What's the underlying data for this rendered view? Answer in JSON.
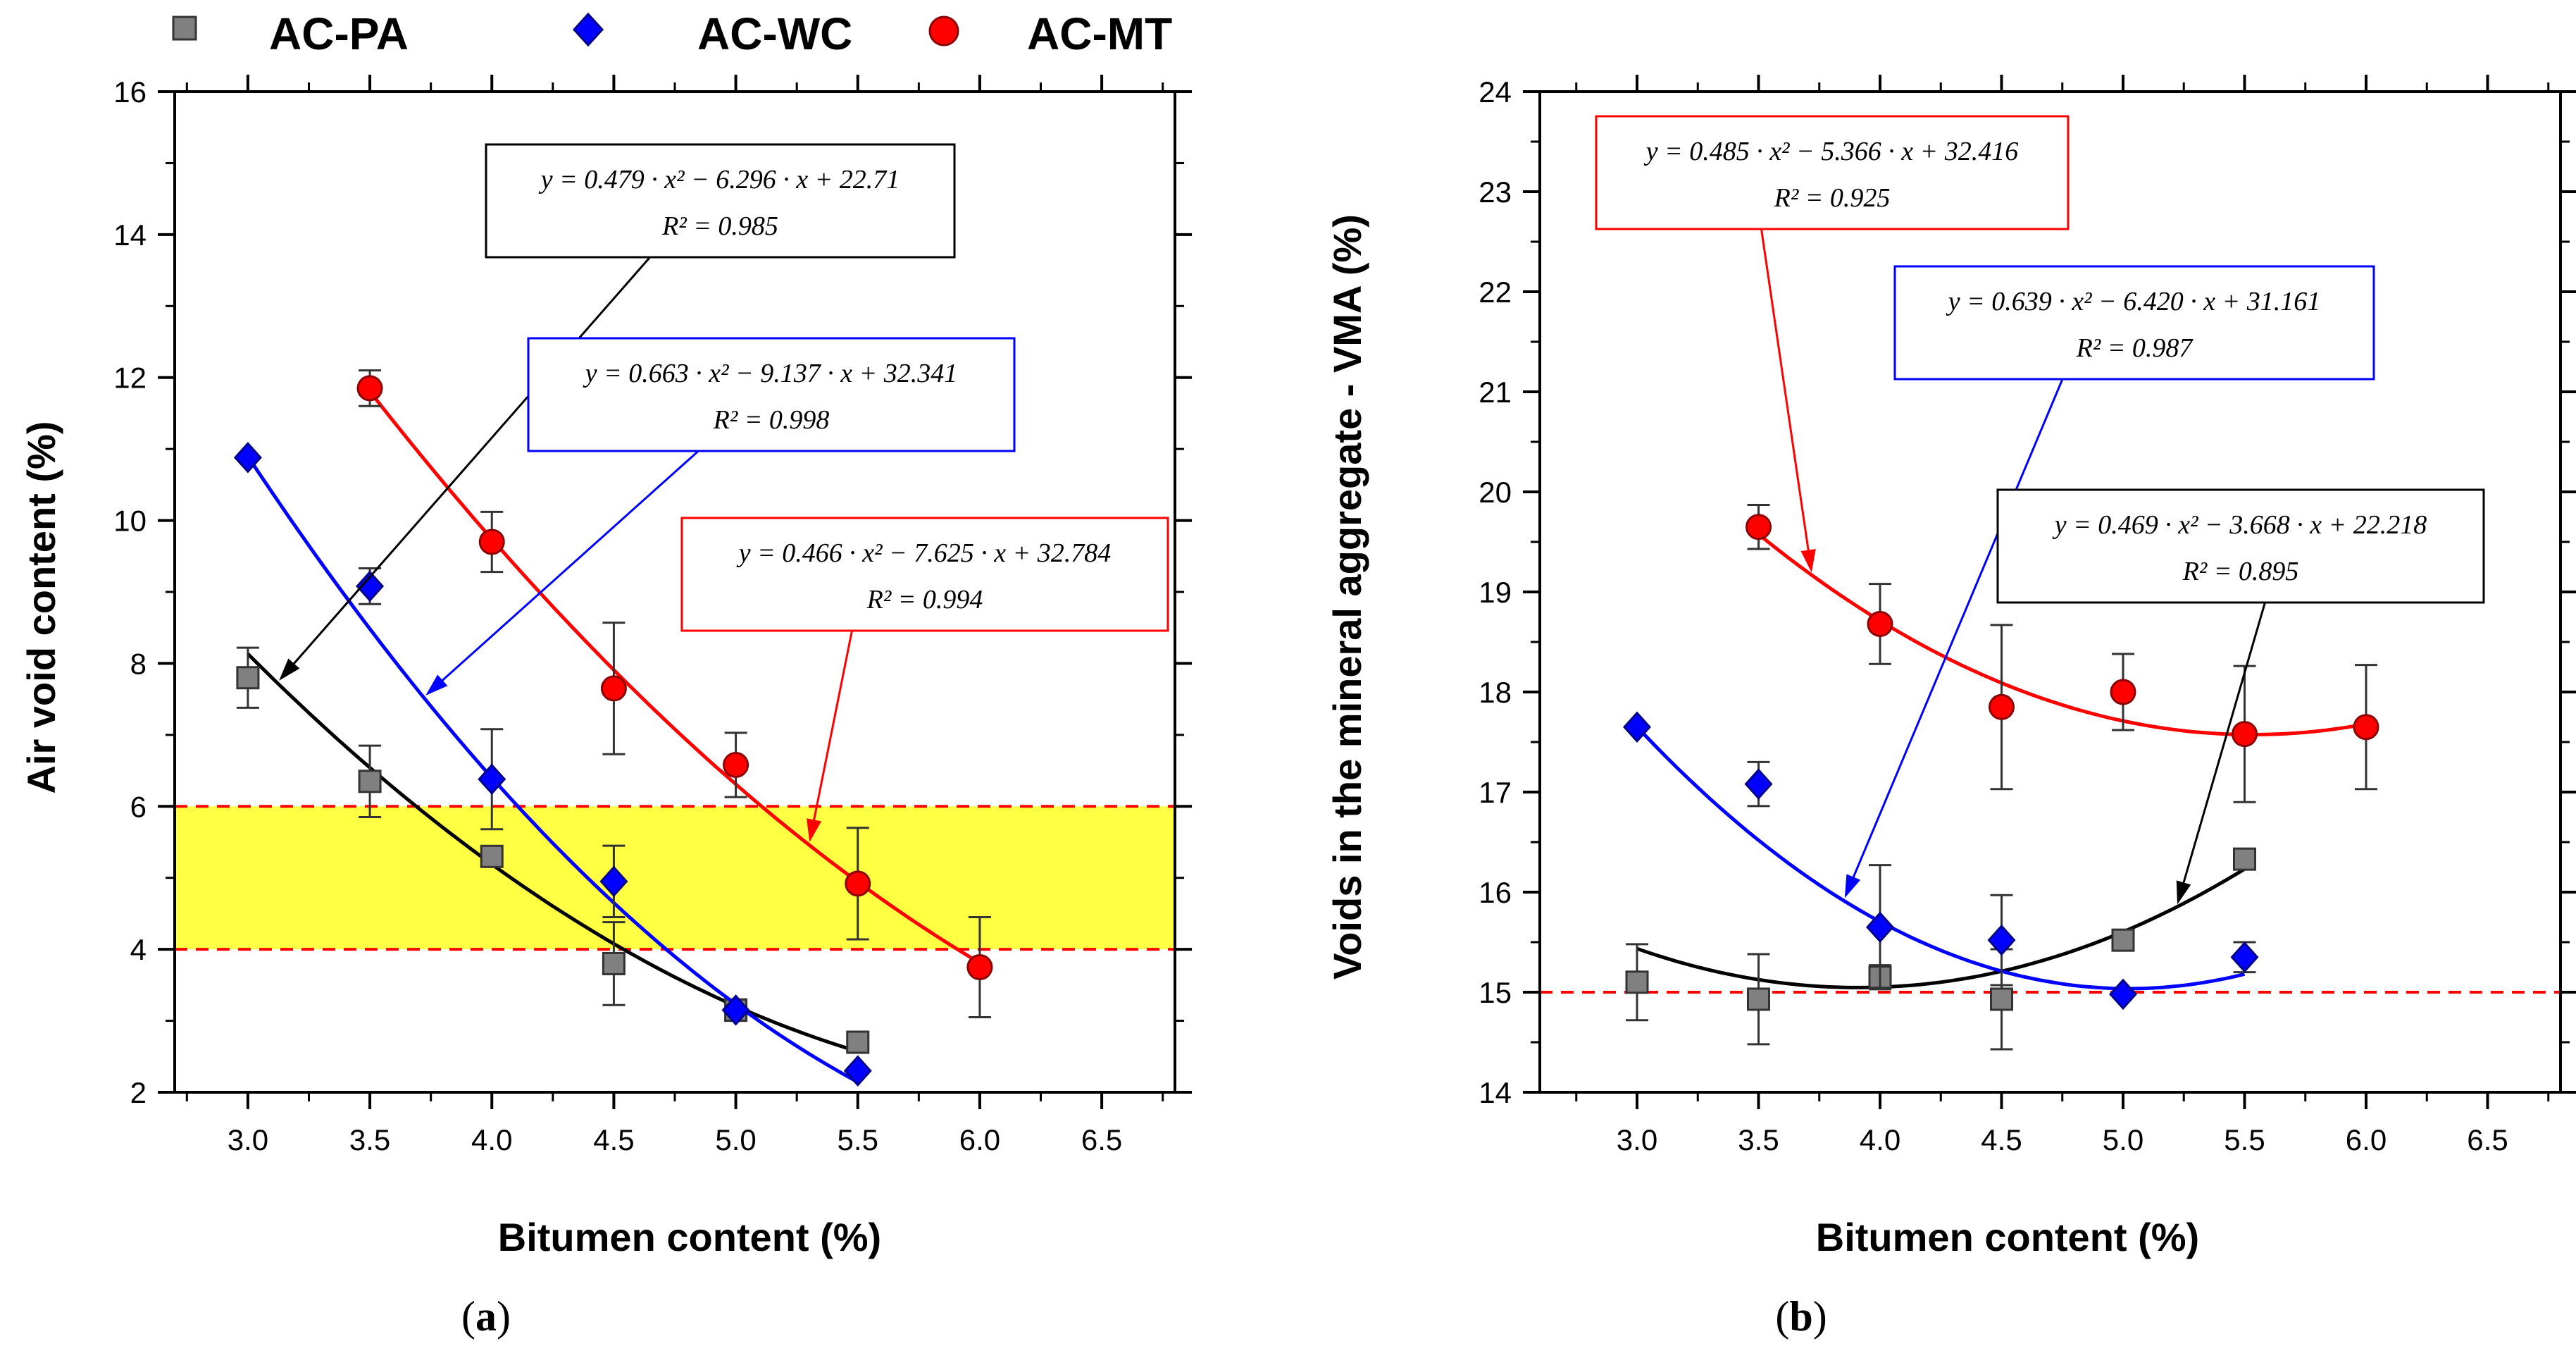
{
  "legend": [
    {
      "name": "AC-PA",
      "color": "#808080",
      "marker": "square"
    },
    {
      "name": "AC-WC",
      "color": "#0000ff",
      "marker": "diamond"
    },
    {
      "name": "AC-MT",
      "color": "#ff0000",
      "marker": "circle"
    }
  ],
  "panels": [
    {
      "label": "(a)",
      "label_letter": "a"
    },
    {
      "label": "(b)",
      "label_letter": "b"
    }
  ],
  "chart_data": [
    {
      "type": "scatter",
      "panel": "a",
      "xlabel": "Bitumen content (%)",
      "ylabel": "Air void content (%)",
      "xlim": [
        2.7,
        6.8
      ],
      "ylim": [
        2,
        16
      ],
      "xticks": [
        3.0,
        3.5,
        4.0,
        4.5,
        5.0,
        5.5,
        6.0,
        6.5
      ],
      "xtick_labels": [
        "3.0",
        "3.5",
        "4.0",
        "4.5",
        "5.0",
        "5.5",
        "6.0",
        "6.5"
      ],
      "yticks": [
        2,
        4,
        6,
        8,
        10,
        12,
        14,
        16
      ],
      "ytick_labels": [
        "2",
        "4",
        "6",
        "8",
        "10",
        "12",
        "14",
        "16"
      ],
      "band": {
        "y0": 4,
        "y1": 6,
        "fill": "#ffff44",
        "line_color": "#ff0000"
      },
      "series": [
        {
          "name": "AC-PA",
          "color": "#808080",
          "fit_color": "#000000",
          "marker": "square",
          "x": [
            3.0,
            3.5,
            4.0,
            4.5,
            5.0,
            5.5
          ],
          "y": [
            7.8,
            6.35,
            5.3,
            3.8,
            3.15,
            2.7
          ],
          "err": [
            0.42,
            0.5,
            0.12,
            0.58,
            0.15,
            0.1
          ],
          "fit": {
            "a": 0.479,
            "b": -6.296,
            "c": 22.71,
            "x0": 3.0,
            "x1": 5.5
          },
          "equation": "y = 0.479 · x² − 6.296 · x + 22.71",
          "r2": "R² = 0.985"
        },
        {
          "name": "AC-WC",
          "color": "#0000ff",
          "fit_color": "#0000ff",
          "marker": "diamond",
          "x": [
            3.0,
            3.5,
            4.0,
            4.5,
            5.0,
            5.5
          ],
          "y": [
            10.88,
            9.08,
            6.38,
            4.95,
            3.15,
            2.3
          ],
          "err": [
            0,
            0.25,
            0.7,
            0.5,
            0,
            0
          ],
          "fit": {
            "a": 0.663,
            "b": -9.137,
            "c": 32.341,
            "x0": 3.0,
            "x1": 5.5
          },
          "equation": "y = 0.663 · x² − 9.137 · x + 32.341",
          "r2": "R² = 0.998"
        },
        {
          "name": "AC-MT",
          "color": "#ff0000",
          "fit_color": "#ff0000",
          "marker": "circle",
          "x": [
            3.5,
            4.0,
            4.5,
            5.0,
            5.5,
            6.0
          ],
          "y": [
            11.85,
            9.7,
            7.65,
            6.58,
            4.92,
            3.75
          ],
          "err": [
            0.25,
            0.42,
            0.92,
            0.45,
            0.78,
            0.7
          ],
          "fit": {
            "a": 0.466,
            "b": -7.625,
            "c": 32.784,
            "x0": 3.5,
            "x1": 6.0
          },
          "equation": "y = 0.466 · x² − 7.625 · x + 32.784",
          "r2": "R² = 0.994"
        }
      ]
    },
    {
      "type": "scatter",
      "panel": "b",
      "xlabel": "Bitumen content (%)",
      "ylabel": "Voids in the mineral aggregate - VMA (%)",
      "xlim": [
        2.6,
        6.8
      ],
      "ylim": [
        14,
        24
      ],
      "xticks": [
        3.0,
        3.5,
        4.0,
        4.5,
        5.0,
        5.5,
        6.0,
        6.5
      ],
      "xtick_labels": [
        "3.0",
        "3.5",
        "4.0",
        "4.5",
        "5.0",
        "5.5",
        "6.0",
        "6.5"
      ],
      "yticks": [
        14,
        15,
        16,
        17,
        18,
        19,
        20,
        21,
        22,
        23,
        24
      ],
      "ytick_labels": [
        "14",
        "15",
        "16",
        "17",
        "18",
        "19",
        "20",
        "21",
        "22",
        "23",
        "24"
      ],
      "threshold": {
        "y": 15,
        "line_color": "#ff0000"
      },
      "series": [
        {
          "name": "AC-PA",
          "color": "#808080",
          "fit_color": "#000000",
          "marker": "square",
          "x": [
            3.0,
            3.5,
            4.0,
            4.5,
            5.0,
            5.5
          ],
          "y": [
            15.1,
            14.93,
            15.15,
            14.93,
            15.52,
            16.33
          ],
          "err": [
            0.38,
            0.45,
            0.12,
            0.5,
            0.06,
            0.06
          ],
          "fit": {
            "a": 0.469,
            "b": -3.668,
            "c": 22.218,
            "x0": 3.0,
            "x1": 5.5
          },
          "equation": "y = 0.469 · x² − 3.668 · x + 22.218",
          "r2": "R² = 0.895"
        },
        {
          "name": "AC-WC",
          "color": "#0000ff",
          "fit_color": "#0000ff",
          "marker": "diamond",
          "x": [
            3.0,
            3.5,
            4.0,
            4.5,
            5.0,
            5.5
          ],
          "y": [
            17.65,
            17.08,
            15.65,
            15.52,
            14.98,
            15.35
          ],
          "err": [
            0,
            0.22,
            0.62,
            0.45,
            0,
            0.15
          ],
          "fit": {
            "a": 0.639,
            "b": -6.42,
            "c": 31.161,
            "x0": 3.0,
            "x1": 5.5
          },
          "equation": "y = 0.639 · x² − 6.420 · x + 31.161",
          "r2": "R² = 0.987"
        },
        {
          "name": "AC-MT",
          "color": "#ff0000",
          "fit_color": "#ff0000",
          "marker": "circle",
          "x": [
            3.5,
            4.0,
            4.5,
            5.0,
            5.5,
            6.0
          ],
          "y": [
            19.65,
            18.68,
            17.85,
            18.0,
            17.58,
            17.65
          ],
          "err": [
            0.22,
            0.4,
            0.82,
            0.38,
            0.68,
            0.62
          ],
          "fit": {
            "a": 0.485,
            "b": -5.366,
            "c": 32.416,
            "x0": 3.5,
            "x1": 6.0
          },
          "equation": "y = 0.485 · x² − 5.366 · x + 32.416",
          "r2": "R² = 0.925"
        }
      ]
    }
  ]
}
